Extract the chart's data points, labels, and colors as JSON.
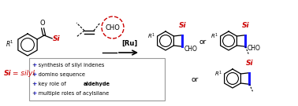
{
  "bg_color": "#ffffff",
  "text_color": "#000000",
  "blue_color": "#1a1aff",
  "red_color": "#cc0000",
  "arrow_color": "#555555",
  "ru_label": "[Ru]",
  "or_label": "or",
  "si_label": "Si",
  "cho_label": "CHO",
  "si_eq_label": "Si = silyl",
  "bullet_lines": [
    "+ synthesis of silyl indenes",
    "+ domino sequence",
    "+ key role of aldehyde",
    "+ multiple roles of acylsilane"
  ],
  "figsize": [
    3.78,
    1.35
  ],
  "dpi": 100
}
